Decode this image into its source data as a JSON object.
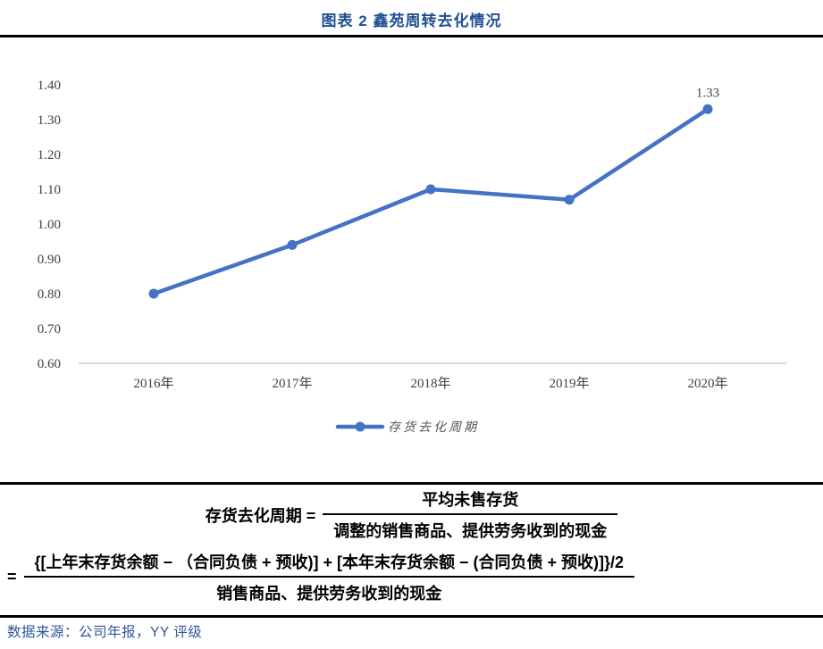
{
  "header": {
    "title": "图表 2 鑫苑周转去化情况"
  },
  "chart_data": {
    "type": "line",
    "title": "图表 2 鑫苑周转去化情况",
    "categories": [
      "2016年",
      "2017年",
      "2018年",
      "2019年",
      "2020年"
    ],
    "series": [
      {
        "name": "存货去化周期",
        "values": [
          0.8,
          0.94,
          1.1,
          1.07,
          1.33
        ],
        "color": "#4472C4"
      }
    ],
    "data_labels": [
      null,
      null,
      null,
      null,
      "1.33"
    ],
    "ylim": [
      0.6,
      1.4
    ],
    "ytick_labels": [
      "1.40",
      "1.30",
      "1.20",
      "1.10",
      "1.00",
      "0.90",
      "0.80",
      "0.70",
      "0.60"
    ],
    "grid": false,
    "legend": {
      "label": "存货去化周期",
      "position": "bottom"
    }
  },
  "formulas": {
    "f1": {
      "lhs": "存货去化周期 =",
      "num": "平均未售存货",
      "den": "调整的销售商品、提供劳务收到的现金"
    },
    "f2": {
      "lhs": "=",
      "num": "{[上年末存货余额 − （合同负债 + 预收)] + [本年末存货余额 − (合同负债 + 预收)]}/2",
      "den": "销售商品、提供劳务收到的现金"
    }
  },
  "footer": {
    "source": "数据来源：公司年报，YY 评级"
  },
  "colors": {
    "accent": "#4472C4",
    "title_text": "#1F4E91",
    "source_text": "#2F5597",
    "axis_text": "#404040",
    "legend_text": "#595959",
    "baseline": "#BFBFBF",
    "rule": "#000000"
  }
}
